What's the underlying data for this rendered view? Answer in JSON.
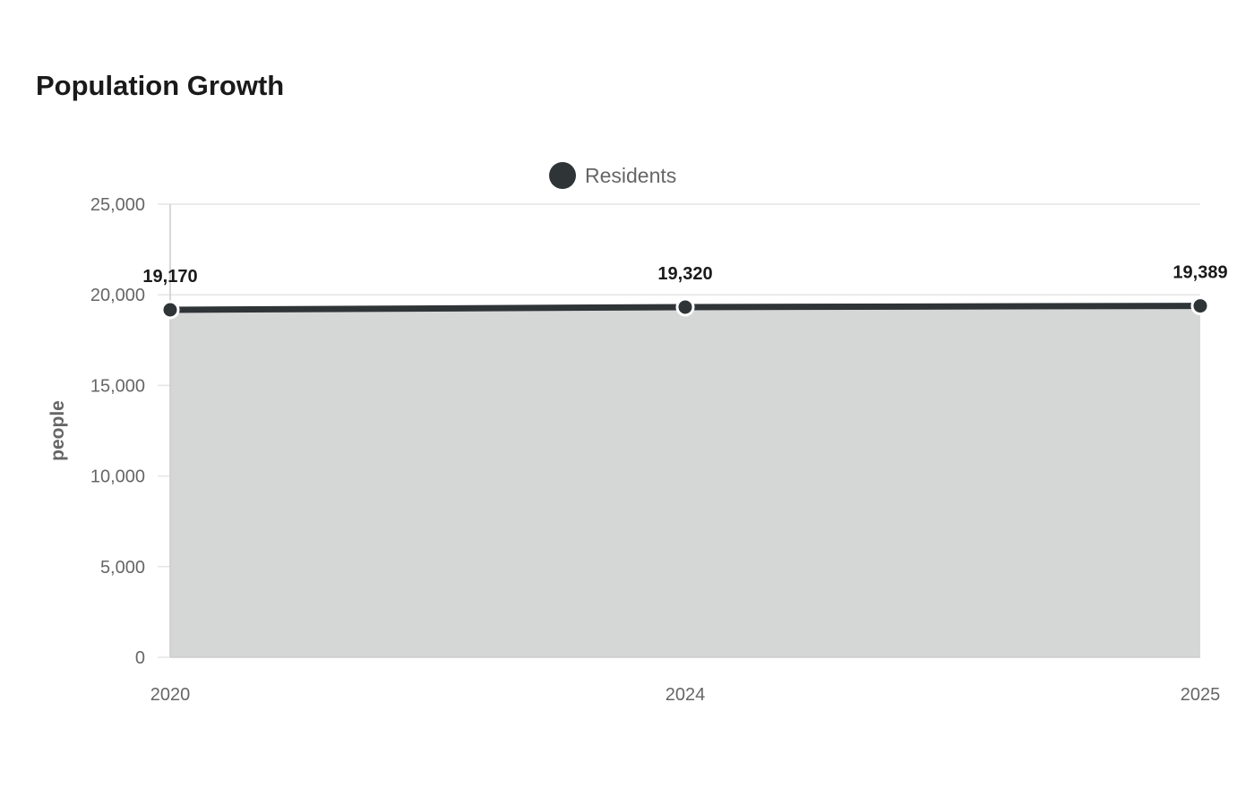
{
  "colors": {
    "series_line": "#2f3437",
    "area_fill": "#d5d7d7",
    "grid": "#e5e5e5",
    "axis": "#cccccc",
    "text_muted": "#666666",
    "text_dark": "#1a1a1a"
  },
  "chart_data": {
    "type": "area",
    "title": "Population Growth",
    "xlabel": "",
    "ylabel": "people",
    "categories": [
      "2020",
      "2024",
      "2025"
    ],
    "series": [
      {
        "name": "Residents",
        "values": [
          19170,
          19320,
          19389
        ]
      }
    ],
    "data_labels": [
      "19,170",
      "19,320",
      "19,389"
    ],
    "ylim": [
      0,
      25000
    ],
    "yticks": [
      0,
      5000,
      10000,
      15000,
      20000,
      25000
    ],
    "ytick_labels": [
      "0",
      "5,000",
      "10,000",
      "15,000",
      "20,000",
      "25,000"
    ],
    "grid": true,
    "legend_position": "top-center"
  }
}
